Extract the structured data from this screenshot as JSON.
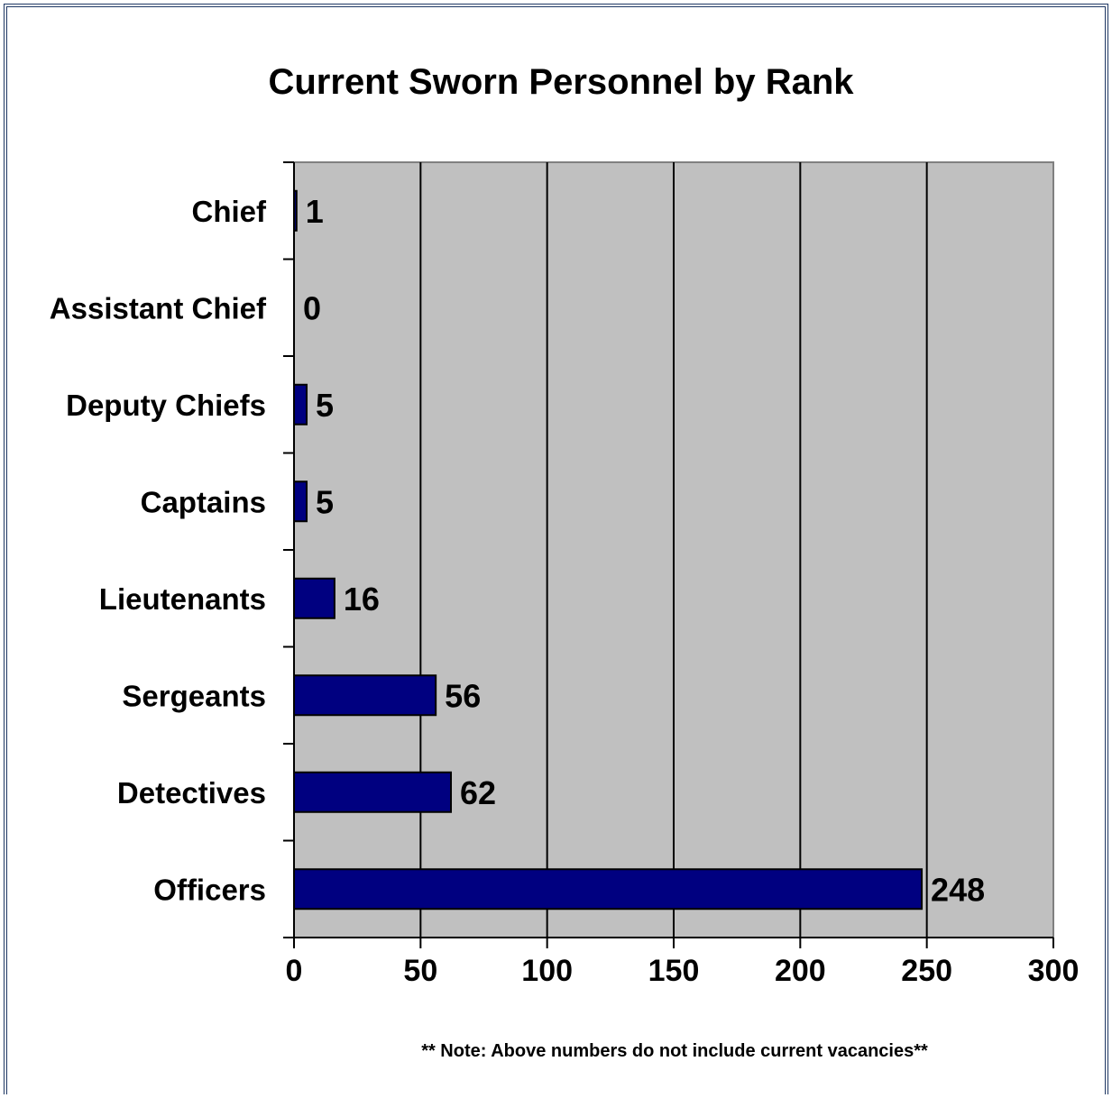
{
  "chart_data": {
    "type": "bar",
    "orientation": "horizontal",
    "title": "Current Sworn Personnel by Rank",
    "categories": [
      "Chief",
      "Assistant Chief",
      "Deputy Chiefs",
      "Captains",
      "Lieutenants",
      "Sergeants",
      "Detectives",
      "Officers"
    ],
    "values": [
      1,
      0,
      5,
      5,
      16,
      56,
      62,
      248
    ],
    "xlim": [
      0,
      300
    ],
    "xticks": [
      0,
      50,
      100,
      150,
      200,
      250,
      300
    ],
    "grid": true,
    "data_labels": true,
    "note": "** Note: Above numbers do not include current vacancies**",
    "colors": {
      "bar": "#000080",
      "plot_background": "#c0c0c0",
      "frame": "#1f3864"
    }
  }
}
